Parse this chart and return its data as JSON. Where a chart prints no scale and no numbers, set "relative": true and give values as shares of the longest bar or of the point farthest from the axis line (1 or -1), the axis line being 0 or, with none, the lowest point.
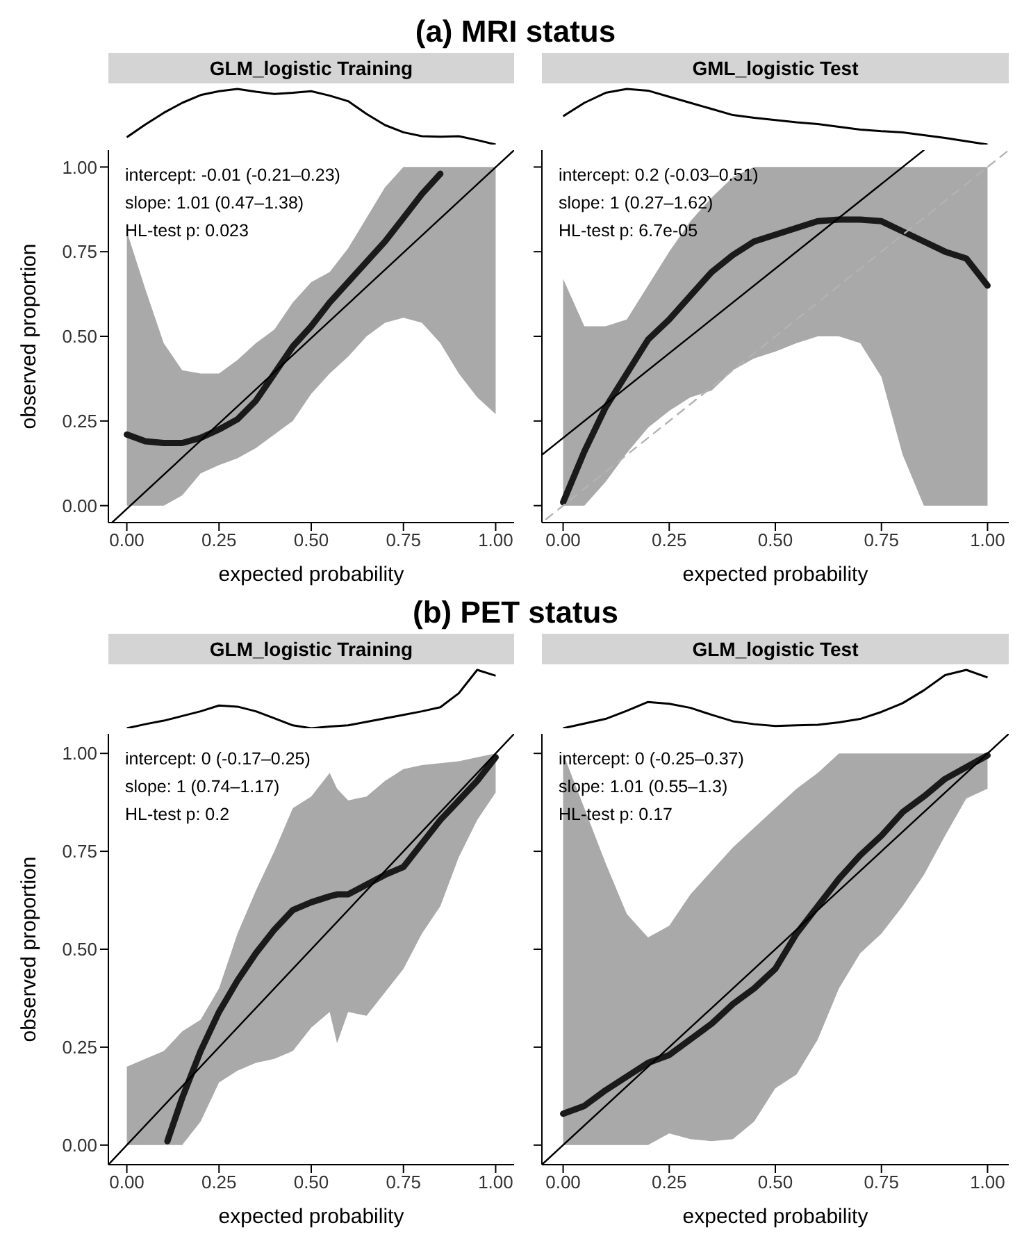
{
  "chart_data": [
    {
      "type": "other",
      "title": "(a) MRI status"
    },
    {
      "type": "line",
      "relative": true,
      "title": "GLM_logistic Training",
      "series": [
        {
          "color": "#000000",
          "values": [
            0.13,
            0.36,
            0.57,
            0.75,
            0.89,
            0.96,
            1,
            0.95,
            0.91,
            0.93,
            0.96,
            0.88,
            0.78,
            0.55,
            0.35,
            0.22,
            0.15,
            0.14,
            0.15,
            0.08,
            0
          ]
        }
      ],
      "categories": [
        null,
        null,
        null,
        null,
        null,
        null,
        null,
        null,
        null,
        null,
        null,
        null,
        null,
        null,
        null,
        null,
        null,
        null,
        null,
        null,
        null
      ]
    },
    {
      "type": "line",
      "xlabel": "expected probability",
      "ylabel": "observed proportion",
      "xlim": [
        -0.05,
        1.05
      ],
      "ylim": [
        -0.05,
        1.05
      ],
      "xticks": [
        {
          "value": 0,
          "label": "0.00"
        },
        {
          "value": 0.25,
          "label": "0.25"
        },
        {
          "value": 0.5,
          "label": "0.50"
        },
        {
          "value": 0.75,
          "label": "0.75"
        },
        {
          "value": 1,
          "label": "1.00"
        }
      ],
      "yticks": [
        {
          "value": 0,
          "label": "0.00"
        },
        {
          "value": 0.25,
          "label": "0.25"
        },
        {
          "value": 0.5,
          "label": "0.50"
        },
        {
          "value": 0.75,
          "label": "0.75"
        },
        {
          "value": 1,
          "label": "1.00"
        }
      ],
      "annotations": [
        "intercept: -0.01 (-0.21–0.23)",
        "slope: 1.01 (0.47–1.38)",
        "HL-test p: 0.023"
      ],
      "series": [
        {
          "color": "#1a1a1a",
          "x": [
            0,
            0.05,
            0.1,
            0.15,
            0.2,
            0.25,
            0.3,
            0.35,
            0.4,
            0.45,
            0.5,
            0.55,
            0.6,
            0.65,
            0.7,
            0.75,
            0.8,
            0.85,
            0.9,
            0.95,
            1
          ],
          "values": [
            0.21,
            0.19,
            0.185,
            0.185,
            0.2,
            0.225,
            0.255,
            0.31,
            0.39,
            0.47,
            0.53,
            0.6,
            0.66,
            0.72,
            0.78,
            0.85,
            0.92,
            0.98,
            null,
            null,
            null
          ],
          "upper": [
            0.81,
            0.64,
            0.48,
            0.4,
            0.39,
            0.39,
            0.43,
            0.48,
            0.52,
            0.6,
            0.66,
            0.69,
            0.76,
            0.85,
            0.94,
            1,
            1,
            1,
            1,
            1,
            1
          ],
          "lower": [
            0,
            0,
            0,
            0.03,
            0.095,
            0.12,
            0.14,
            0.17,
            0.21,
            0.25,
            0.33,
            0.39,
            0.44,
            0.5,
            0.54,
            0.555,
            0.54,
            0.48,
            0.39,
            0.32,
            0.27
          ]
        },
        {
          "color": "#000000",
          "x": [
            -0.04,
            1.05
          ],
          "values": [
            -0.05,
            1.05
          ]
        }
      ]
    },
    {
      "type": "line",
      "relative": true,
      "title": "GML_logistic Test",
      "series": [
        {
          "color": "#000000",
          "values": [
            0.51,
            0.75,
            0.93,
            1,
            0.97,
            0.86,
            0.75,
            0.64,
            0.53,
            0.48,
            0.44,
            0.4,
            0.37,
            0.32,
            0.27,
            0.24,
            0.22,
            0.17,
            0.12,
            0.06,
            0
          ]
        }
      ],
      "categories": [
        null,
        null,
        null,
        null,
        null,
        null,
        null,
        null,
        null,
        null,
        null,
        null,
        null,
        null,
        null,
        null,
        null,
        null,
        null,
        null,
        null
      ]
    },
    {
      "type": "line",
      "xlabel": "expected probability",
      "xlim": [
        -0.05,
        1.05
      ],
      "ylim": [
        -0.05,
        1.05
      ],
      "tick_labels": "x",
      "xticks": [
        {
          "value": 0,
          "label": "0.00"
        },
        {
          "value": 0.25,
          "label": "0.25"
        },
        {
          "value": 0.5,
          "label": "0.50"
        },
        {
          "value": 0.75,
          "label": "0.75"
        },
        {
          "value": 1,
          "label": "1.00"
        }
      ],
      "yticks": [
        {
          "value": 0,
          "label": null
        },
        {
          "value": 0.25,
          "label": null
        },
        {
          "value": 0.5,
          "label": null
        },
        {
          "value": 0.75,
          "label": null
        },
        {
          "value": 1,
          "label": null
        }
      ],
      "annotations": [
        "intercept: 0.2 (-0.03–0.51)",
        "slope: 1 (0.27–1.62)",
        "HL-test p: 6.7e-05"
      ],
      "series": [
        {
          "color": "#1a1a1a",
          "x": [
            0,
            0.05,
            0.1,
            0.15,
            0.2,
            0.25,
            0.3,
            0.35,
            0.4,
            0.45,
            0.5,
            0.55,
            0.6,
            0.65,
            0.7,
            0.75,
            0.8,
            0.85,
            0.9,
            0.95,
            1
          ],
          "values": [
            0.01,
            0.16,
            0.29,
            0.39,
            0.49,
            0.55,
            0.62,
            0.69,
            0.74,
            0.78,
            0.8,
            0.82,
            0.84,
            0.845,
            0.845,
            0.84,
            0.81,
            0.78,
            0.75,
            0.73,
            0.65
          ],
          "upper": [
            0.67,
            0.53,
            0.53,
            0.55,
            0.65,
            0.75,
            0.84,
            0.91,
            0.97,
            1,
            1,
            1,
            1,
            1,
            1,
            1,
            1,
            1,
            1,
            1,
            1
          ],
          "lower": [
            0,
            0,
            0.07,
            0.155,
            0.23,
            0.28,
            0.32,
            0.34,
            0.4,
            0.435,
            0.455,
            0.48,
            0.5,
            0.5,
            0.48,
            0.38,
            0.15,
            0,
            0,
            0,
            0
          ]
        },
        {
          "color": "#000000",
          "x": [
            -0.05,
            0.85
          ],
          "values": [
            0.15,
            1.05
          ]
        },
        {
          "color": "#b3b3b3",
          "line_style": "dashed",
          "x": [
            -0.04,
            1.05
          ],
          "values": [
            -0.04,
            1.05
          ]
        }
      ]
    },
    {
      "type": "other",
      "title": "(b) PET status"
    },
    {
      "type": "line",
      "relative": true,
      "title": "GLM_logistic Training",
      "series": [
        {
          "color": "#000000",
          "values": [
            0,
            0.07,
            0.13,
            0.21,
            0.29,
            0.39,
            0.37,
            0.29,
            0.17,
            0.05,
            0,
            0.03,
            0.05,
            0.11,
            0.17,
            0.23,
            0.29,
            0.36,
            0.6,
            1,
            0.9
          ]
        }
      ],
      "categories": [
        null,
        null,
        null,
        null,
        null,
        null,
        null,
        null,
        null,
        null,
        null,
        null,
        null,
        null,
        null,
        null,
        null,
        null,
        null,
        null,
        null
      ]
    },
    {
      "type": "line",
      "xlabel": "expected probability",
      "ylabel": "observed proportion",
      "xlim": [
        -0.05,
        1.05
      ],
      "ylim": [
        -0.05,
        1.05
      ],
      "xticks": [
        {
          "value": 0,
          "label": "0.00"
        },
        {
          "value": 0.25,
          "label": "0.25"
        },
        {
          "value": 0.5,
          "label": "0.50"
        },
        {
          "value": 0.75,
          "label": "0.75"
        },
        {
          "value": 1,
          "label": "1.00"
        }
      ],
      "yticks": [
        {
          "value": 0,
          "label": "0.00"
        },
        {
          "value": 0.25,
          "label": "0.25"
        },
        {
          "value": 0.5,
          "label": "0.50"
        },
        {
          "value": 0.75,
          "label": "0.75"
        },
        {
          "value": 1,
          "label": "1.00"
        }
      ],
      "annotations": [
        "intercept: 0 (-0.17–0.25)",
        "slope: 1 (0.74–1.17)",
        "HL-test p: 0.2"
      ],
      "series": [
        {
          "color": "#1a1a1a",
          "x": [
            0,
            0.05,
            0.1,
            0.11,
            0.15,
            0.2,
            0.25,
            0.3,
            0.35,
            0.4,
            0.45,
            0.5,
            0.55,
            0.57,
            0.6,
            0.65,
            0.7,
            0.75,
            0.8,
            0.85,
            0.9,
            0.95,
            1
          ],
          "values": [
            null,
            null,
            null,
            0.01,
            0.12,
            0.24,
            0.34,
            0.42,
            0.49,
            0.55,
            0.6,
            0.62,
            0.635,
            0.64,
            0.64,
            0.665,
            0.69,
            0.71,
            0.77,
            0.83,
            0.88,
            0.93,
            0.99
          ],
          "upper": [
            0.2,
            0.22,
            0.24,
            0.25,
            0.29,
            0.32,
            0.4,
            0.54,
            0.65,
            0.75,
            0.86,
            0.89,
            0.95,
            0.91,
            0.88,
            0.89,
            0.93,
            0.96,
            0.97,
            0.975,
            0.98,
            0.99,
            1
          ],
          "lower": [
            0,
            0,
            0,
            0,
            0,
            0.06,
            0.16,
            0.19,
            0.21,
            0.22,
            0.24,
            0.3,
            0.34,
            0.26,
            0.34,
            0.33,
            0.39,
            0.45,
            0.54,
            0.61,
            0.735,
            0.83,
            0.9
          ]
        },
        {
          "color": "#000000",
          "x": [
            -0.05,
            1.05
          ],
          "values": [
            -0.05,
            1.05
          ]
        }
      ]
    },
    {
      "type": "line",
      "relative": true,
      "title": "GLM_logistic Test",
      "series": [
        {
          "color": "#000000",
          "values": [
            0,
            0.08,
            0.16,
            0.3,
            0.45,
            0.42,
            0.35,
            0.23,
            0.12,
            0.07,
            0.04,
            0.05,
            0.06,
            0.1,
            0.16,
            0.28,
            0.43,
            0.65,
            0.91,
            1,
            0.87
          ]
        }
      ],
      "categories": [
        null,
        null,
        null,
        null,
        null,
        null,
        null,
        null,
        null,
        null,
        null,
        null,
        null,
        null,
        null,
        null,
        null,
        null,
        null,
        null,
        null
      ]
    },
    {
      "type": "line",
      "xlabel": "expected probability",
      "xlim": [
        -0.05,
        1.05
      ],
      "ylim": [
        -0.05,
        1.05
      ],
      "tick_labels": "x",
      "xticks": [
        {
          "value": 0,
          "label": "0.00"
        },
        {
          "value": 0.25,
          "label": "0.25"
        },
        {
          "value": 0.5,
          "label": "0.50"
        },
        {
          "value": 0.75,
          "label": "0.75"
        },
        {
          "value": 1,
          "label": "1.00"
        }
      ],
      "yticks": [
        {
          "value": 0,
          "label": null
        },
        {
          "value": 0.25,
          "label": null
        },
        {
          "value": 0.5,
          "label": null
        },
        {
          "value": 0.75,
          "label": null
        },
        {
          "value": 1,
          "label": null
        }
      ],
      "annotations": [
        "intercept: 0 (-0.25–0.37)",
        "slope: 1.01 (0.55–1.3)",
        "HL-test p: 0.17"
      ],
      "series": [
        {
          "color": "#1a1a1a",
          "x": [
            0,
            0.05,
            0.1,
            0.15,
            0.2,
            0.25,
            0.3,
            0.35,
            0.4,
            0.45,
            0.5,
            0.55,
            0.6,
            0.65,
            0.7,
            0.75,
            0.8,
            0.85,
            0.9,
            0.95,
            1
          ],
          "values": [
            0.08,
            0.1,
            0.14,
            0.175,
            0.21,
            0.23,
            0.27,
            0.31,
            0.36,
            0.4,
            0.45,
            0.54,
            0.61,
            0.68,
            0.74,
            0.79,
            0.85,
            0.89,
            0.935,
            0.965,
            0.995
          ],
          "upper": [
            1,
            0.86,
            0.72,
            0.59,
            0.53,
            0.56,
            0.64,
            0.7,
            0.76,
            0.81,
            0.86,
            0.91,
            0.95,
            1,
            1,
            1,
            1,
            1,
            1,
            1,
            1
          ],
          "lower": [
            0,
            0,
            0,
            0,
            0,
            0.03,
            0.015,
            0.01,
            0.015,
            0.06,
            0.145,
            0.18,
            0.27,
            0.4,
            0.49,
            0.54,
            0.61,
            0.69,
            0.79,
            0.885,
            0.91
          ]
        },
        {
          "color": "#000000",
          "x": [
            -0.05,
            1.05
          ],
          "values": [
            -0.05,
            1.05
          ]
        }
      ]
    }
  ]
}
